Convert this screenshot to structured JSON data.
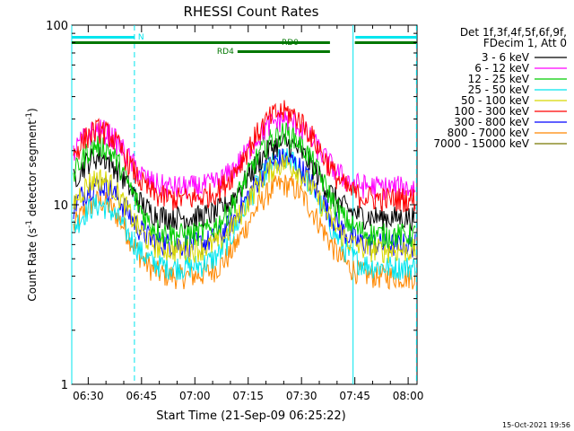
{
  "chart_data": {
    "type": "line",
    "title": "RHESSI Count Rates",
    "xlabel": "Start Time (21-Sep-09 06:25:22)",
    "ylabel_main": "Count Rate (s",
    "ylabel_sup1": "-1",
    "ylabel_mid": " detector segment",
    "ylabel_sup2": "-1",
    "ylabel_end": ")",
    "yscale": "log",
    "ylim": [
      1,
      100
    ],
    "xlim": [
      "06:25:22",
      "08:02:30"
    ],
    "x_ticks": [
      "06:30",
      "06:45",
      "07:00",
      "07:15",
      "07:30",
      "07:45",
      "08:00"
    ],
    "y_ticks": [
      "1",
      "10",
      "100"
    ],
    "legend_header": [
      "Det 1f,3f,4f,5f,6f,9f,",
      "FDecim 1, Att 0"
    ],
    "legend_position": "right",
    "timestamp": "15-Oct-2021 19:56",
    "time_marks": [
      "06:25:22",
      "06:43:00",
      "07:44:30",
      "08:02:20"
    ],
    "flags": [
      {
        "label": "N",
        "color": "#00e5ee",
        "start": "06:25:22",
        "end": "06:43:00",
        "row": "upper"
      },
      {
        "label": "",
        "color": "#00e5ee",
        "start": "07:45:10",
        "end": "08:02:20",
        "row": "upper"
      },
      {
        "label": "RD0",
        "color": "#007700",
        "start": "06:25:22",
        "end": "08:02:20",
        "row": "middle",
        "gap": [
          "07:38:00",
          "07:45:00"
        ]
      },
      {
        "label": "RD4",
        "color": "#007700",
        "start": "07:12:00",
        "end": "07:38:00",
        "row": "lower"
      }
    ],
    "series": [
      {
        "name": "3 - 6 keV",
        "color": "#000000",
        "peak": 18.5,
        "peak2": 22,
        "base": 8.5
      },
      {
        "name": "6 - 12 keV",
        "color": "#ff00ff",
        "peak": 26,
        "peak2": 30,
        "base": 12.5
      },
      {
        "name": "12 - 25 keV",
        "color": "#00cc00",
        "peak": 21.5,
        "peak2": 25,
        "base": 6.8
      },
      {
        "name": "25 - 50 keV",
        "color": "#00e5ee",
        "peak": 10,
        "peak2": 18,
        "base": 4.5
      },
      {
        "name": "50 - 100 keV",
        "color": "#d8d800",
        "peak": 14,
        "peak2": 17,
        "base": 5.6
      },
      {
        "name": "100 - 300 keV",
        "color": "#ff0000",
        "peak": 26,
        "peak2": 33,
        "base": 10.8
      },
      {
        "name": "300 - 800 keV",
        "color": "#0000ff",
        "peak": 13,
        "peak2": 18,
        "base": 6.0
      },
      {
        "name": "800 - 7000 keV",
        "color": "#ff8800",
        "peak": 10.5,
        "peak2": 13,
        "base": 4.0
      },
      {
        "name": "7000 - 15000 keV",
        "color": "#777700",
        "peak": null,
        "peak2": null,
        "base": null
      }
    ]
  }
}
